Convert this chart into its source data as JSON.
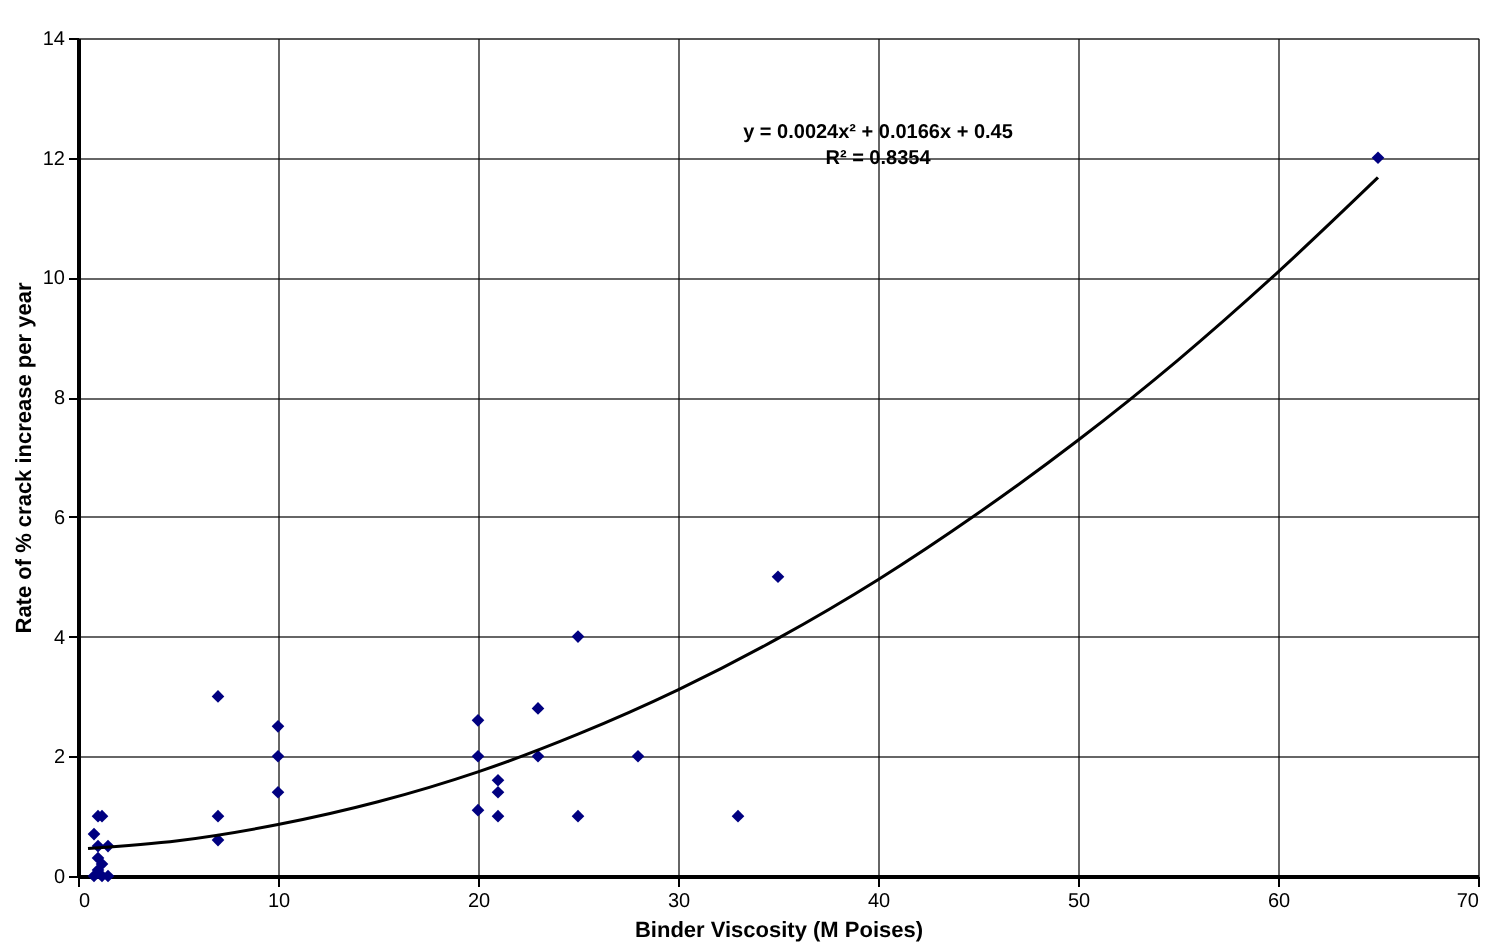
{
  "chart_data": {
    "type": "scatter",
    "xlabel": "Binder Viscosity (M Poises)",
    "ylabel": "Rate of % crack increase per year",
    "xlim": [
      0,
      70
    ],
    "xticks": [
      0,
      10,
      20,
      30,
      40,
      50,
      60,
      70
    ],
    "ylim": [
      0,
      14
    ],
    "yticks": [
      0,
      2,
      4,
      6,
      8,
      10,
      12,
      14
    ],
    "grid": true,
    "annotations": [
      "y = 0.0024x² + 0.0166x + 0.45",
      "R² = 0.8354"
    ],
    "series": [
      {
        "color": "#000080",
        "marker": "diamond",
        "x": [
          0.8,
          1,
          1.2,
          1,
          1.5,
          1,
          1.2,
          0.8,
          1.2,
          1.5,
          1,
          7,
          7,
          7,
          10,
          10,
          10,
          20,
          20,
          20,
          21,
          21,
          21,
          23,
          23,
          25,
          25,
          28,
          33,
          35,
          65
        ],
        "values": [
          0.7,
          1,
          1,
          0.5,
          0.5,
          0.3,
          0.2,
          0,
          0,
          0,
          0.1,
          3,
          1,
          0.6,
          2.5,
          2,
          1.4,
          2.6,
          2,
          1.1,
          1.6,
          1.4,
          1,
          2.8,
          2,
          4,
          1,
          2,
          1,
          5,
          12
        ]
      },
      {
        "type": "line",
        "color": "#000000",
        "marker": "none",
        "line_style": "solid",
        "x": [
          0.5,
          5,
          10,
          15,
          20,
          25,
          30,
          35,
          40,
          45,
          50,
          55,
          60,
          65
        ],
        "values": [
          0.46,
          0.59,
          0.86,
          1.24,
          1.74,
          2.37,
          3.11,
          3.97,
          4.95,
          6.06,
          7.28,
          8.62,
          10.09,
          11.67
        ]
      }
    ]
  }
}
